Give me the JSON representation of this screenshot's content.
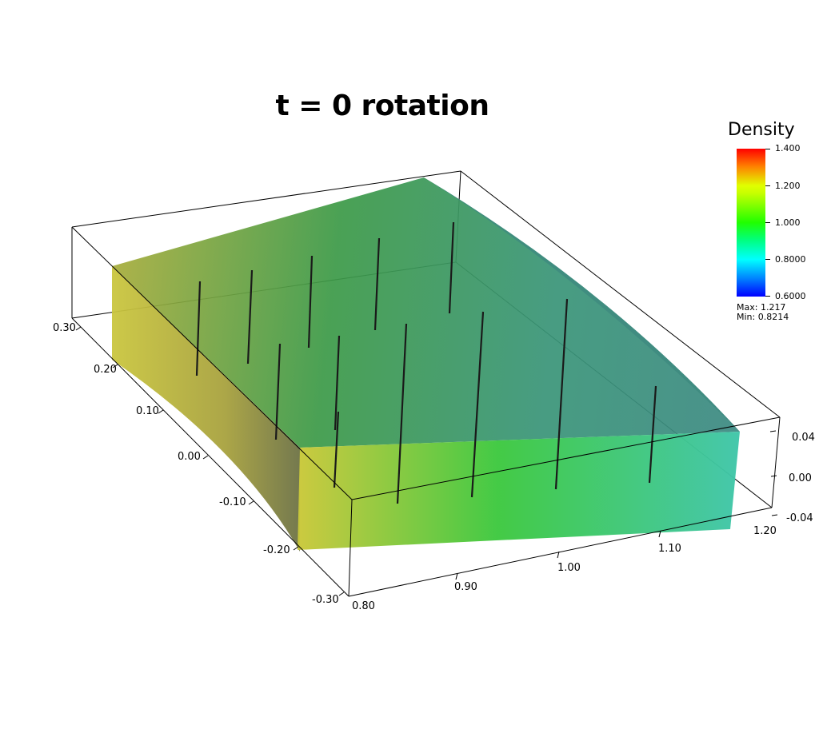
{
  "title": "t = 0 rotation",
  "legend": {
    "title": "Density",
    "ticks": [
      "1.400",
      "1.200",
      "1.000",
      "0.8000",
      "0.6000"
    ],
    "max_label": "Max: 1.217",
    "min_label": "Min: 0.8214",
    "range": [
      0.6,
      1.4
    ]
  },
  "axes": {
    "x_ticks": [
      "0.80",
      "0.90",
      "1.00",
      "1.10",
      "1.20"
    ],
    "y_ticks": [
      "-0.30",
      "-0.20",
      "-0.10",
      "0.00",
      "0.10",
      "0.20",
      "0.30"
    ],
    "z_ticks": [
      "0.04",
      "0.00",
      "-0.04"
    ]
  },
  "colors": {
    "yellow": "#c9c83a",
    "green": "#3fc93f",
    "teal": "#3fc9a8",
    "top_green": "#3e9a4a",
    "top_teal": "#3f8f86"
  }
}
